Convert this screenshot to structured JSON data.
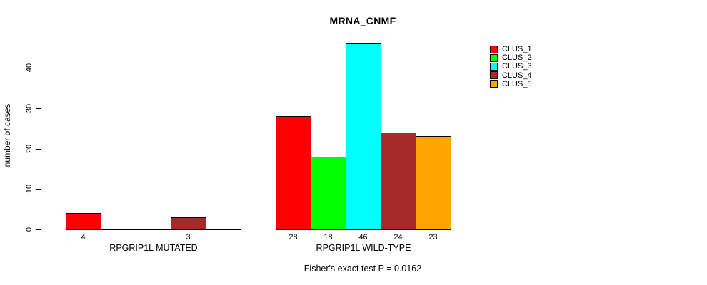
{
  "title": "MRNA_CNMF",
  "subtitle": "Fisher's exact test P = 0.0162",
  "y_axis": {
    "label": "number of cases",
    "ticks": [
      0,
      10,
      20,
      30,
      40
    ]
  },
  "legend": {
    "items": [
      {
        "label": "CLUS_1",
        "color": "#FF0000"
      },
      {
        "label": "CLUS_2",
        "color": "#00FF00"
      },
      {
        "label": "CLUS_3",
        "color": "#00FFFF"
      },
      {
        "label": "CLUS_4",
        "color": "#A52A2A"
      },
      {
        "label": "CLUS_5",
        "color": "#FFA500"
      }
    ]
  },
  "chart_data": {
    "type": "bar",
    "title": "MRNA_CNMF",
    "subtitle": "Fisher's exact test P = 0.0162",
    "xlabel": "",
    "ylabel": "number of cases",
    "categories": [
      "RPGRIP1L MUTATED",
      "RPGRIP1L WILD-TYPE"
    ],
    "series": [
      {
        "name": "CLUS_1",
        "color": "#FF0000",
        "values": [
          4,
          28
        ]
      },
      {
        "name": "CLUS_2",
        "color": "#00FF00",
        "values": [
          0,
          18
        ]
      },
      {
        "name": "CLUS_3",
        "color": "#00FFFF",
        "values": [
          0,
          46
        ]
      },
      {
        "name": "CLUS_4",
        "color": "#A52A2A",
        "values": [
          3,
          24
        ]
      },
      {
        "name": "CLUS_5",
        "color": "#FFA500",
        "values": [
          0,
          23
        ]
      }
    ],
    "bar_value_labels_shown_when_nonzero": true,
    "yticks": [
      0,
      10,
      20,
      30,
      40
    ],
    "ylim": [
      0,
      46
    ],
    "grid": false,
    "legend_position": "right",
    "bar_border_color": "#000000"
  }
}
